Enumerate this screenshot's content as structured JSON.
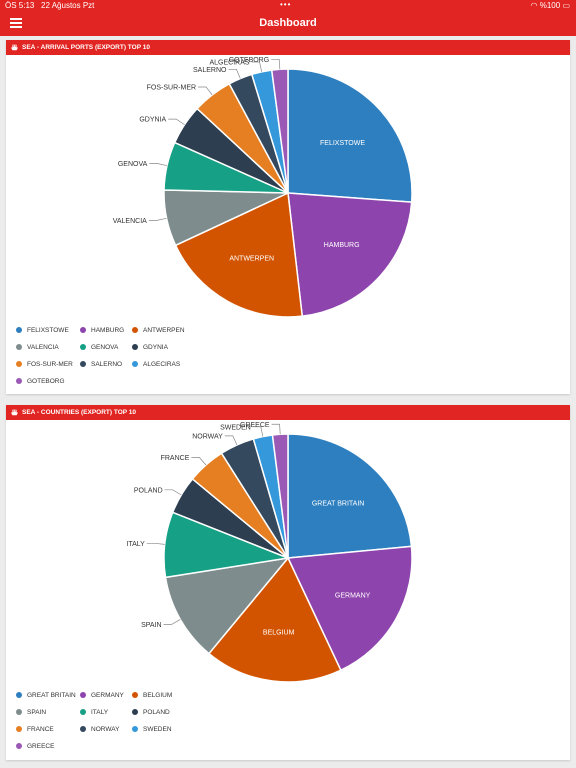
{
  "status_bar": {
    "time": "ÖS 5:13",
    "date": "22 Ağustos Pzt",
    "dots": "•••",
    "battery": "%100"
  },
  "header": {
    "title": "Dashboard"
  },
  "colors": {
    "accent": "#e12522"
  },
  "cards": [
    {
      "title": "SEA - ARRIVAL PORTS (EXPORT) TOP 10"
    },
    {
      "title": "SEA - COUNTRIES (EXPORT) TOP 10"
    }
  ],
  "chart_data": [
    {
      "type": "pie",
      "title": "SEA - ARRIVAL PORTS (EXPORT) TOP 10",
      "categories": [
        "FELIXSTOWE",
        "HAMBURG",
        "ANTWERPEN",
        "VALENCIA",
        "GENOVA",
        "GDYNIA",
        "FOS-SUR-MER",
        "SALERNO",
        "ALGECIRAS",
        "GOTEBORG"
      ],
      "values": [
        25,
        21,
        19,
        7,
        6,
        5,
        5,
        3,
        2.5,
        2
      ],
      "colors": [
        "#2e7fbf",
        "#8e44ad",
        "#d35400",
        "#7f8c8d",
        "#16a085",
        "#2c3e50",
        "#e67e22",
        "#34495e",
        "#3498db",
        "#9b59b6"
      ],
      "legend": "bottom"
    },
    {
      "type": "pie",
      "title": "SEA - COUNTRIES (EXPORT) TOP 10",
      "categories": [
        "GREAT BRITAIN",
        "GERMANY",
        "BELGIUM",
        "SPAIN",
        "ITALY",
        "POLAND",
        "FRANCE",
        "NORWAY",
        "SWEDEN",
        "GREECE"
      ],
      "values": [
        23.5,
        19.5,
        18,
        11.5,
        8.5,
        5,
        5,
        4.5,
        2.5,
        2
      ],
      "colors": [
        "#2e7fbf",
        "#8e44ad",
        "#d35400",
        "#7f8c8d",
        "#16a085",
        "#2c3e50",
        "#e67e22",
        "#34495e",
        "#3498db",
        "#9b59b6"
      ],
      "legend": "bottom"
    }
  ]
}
